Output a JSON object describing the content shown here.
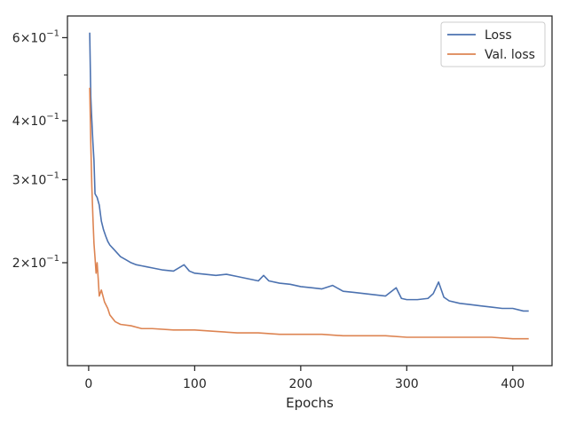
{
  "chart_data": {
    "type": "line",
    "title": "",
    "xlabel": "Epochs",
    "ylabel": "",
    "x_ticks": [
      0,
      100,
      200,
      300,
      400
    ],
    "y_scale": "log",
    "y_ticks": [
      {
        "value": 0.6,
        "mantissa": "6",
        "base": "×10",
        "exp": "−1"
      },
      {
        "value": 0.4,
        "mantissa": "4",
        "base": "×10",
        "exp": "−1"
      },
      {
        "value": 0.3,
        "mantissa": "3",
        "base": "×10",
        "exp": "−1"
      },
      {
        "value": 0.2,
        "mantissa": "2",
        "base": "×10",
        "exp": "−1"
      }
    ],
    "y_minor_ticks": [
      0.5
    ],
    "xlim": [
      -20,
      437
    ],
    "ylim": [
      0.121,
      0.667
    ],
    "grid": false,
    "legend_position": "top-right",
    "series": [
      {
        "name": "Loss",
        "color": "#4c72b0",
        "points": [
          [
            1,
            0.615
          ],
          [
            2,
            0.45
          ],
          [
            3,
            0.4
          ],
          [
            4,
            0.36
          ],
          [
            5,
            0.33
          ],
          [
            6,
            0.28
          ],
          [
            8,
            0.275
          ],
          [
            10,
            0.265
          ],
          [
            12,
            0.245
          ],
          [
            14,
            0.235
          ],
          [
            16,
            0.228
          ],
          [
            18,
            0.222
          ],
          [
            20,
            0.218
          ],
          [
            25,
            0.212
          ],
          [
            30,
            0.206
          ],
          [
            35,
            0.203
          ],
          [
            40,
            0.2
          ],
          [
            45,
            0.198
          ],
          [
            50,
            0.197
          ],
          [
            55,
            0.196
          ],
          [
            60,
            0.195
          ],
          [
            70,
            0.193
          ],
          [
            80,
            0.192
          ],
          [
            90,
            0.198
          ],
          [
            95,
            0.192
          ],
          [
            100,
            0.19
          ],
          [
            110,
            0.189
          ],
          [
            120,
            0.188
          ],
          [
            130,
            0.189
          ],
          [
            140,
            0.187
          ],
          [
            150,
            0.185
          ],
          [
            160,
            0.183
          ],
          [
            165,
            0.188
          ],
          [
            170,
            0.183
          ],
          [
            180,
            0.181
          ],
          [
            190,
            0.18
          ],
          [
            200,
            0.178
          ],
          [
            210,
            0.177
          ],
          [
            220,
            0.176
          ],
          [
            230,
            0.179
          ],
          [
            240,
            0.174
          ],
          [
            250,
            0.173
          ],
          [
            260,
            0.172
          ],
          [
            270,
            0.171
          ],
          [
            280,
            0.17
          ],
          [
            290,
            0.177
          ],
          [
            295,
            0.168
          ],
          [
            300,
            0.167
          ],
          [
            310,
            0.167
          ],
          [
            320,
            0.168
          ],
          [
            325,
            0.172
          ],
          [
            330,
            0.182
          ],
          [
            335,
            0.169
          ],
          [
            340,
            0.166
          ],
          [
            350,
            0.164
          ],
          [
            360,
            0.163
          ],
          [
            370,
            0.162
          ],
          [
            380,
            0.161
          ],
          [
            390,
            0.16
          ],
          [
            400,
            0.16
          ],
          [
            410,
            0.158
          ],
          [
            415,
            0.158
          ]
        ]
      },
      {
        "name": "Val. loss",
        "color": "#dd8452",
        "points": [
          [
            1,
            0.47
          ],
          [
            2,
            0.36
          ],
          [
            3,
            0.29
          ],
          [
            4,
            0.25
          ],
          [
            5,
            0.22
          ],
          [
            6,
            0.205
          ],
          [
            7,
            0.19
          ],
          [
            8,
            0.2
          ],
          [
            9,
            0.185
          ],
          [
            10,
            0.17
          ],
          [
            12,
            0.175
          ],
          [
            15,
            0.165
          ],
          [
            18,
            0.16
          ],
          [
            20,
            0.155
          ],
          [
            25,
            0.15
          ],
          [
            30,
            0.148
          ],
          [
            40,
            0.147
          ],
          [
            50,
            0.145
          ],
          [
            60,
            0.145
          ],
          [
            80,
            0.144
          ],
          [
            100,
            0.144
          ],
          [
            120,
            0.143
          ],
          [
            140,
            0.142
          ],
          [
            160,
            0.142
          ],
          [
            180,
            0.141
          ],
          [
            200,
            0.141
          ],
          [
            220,
            0.141
          ],
          [
            240,
            0.14
          ],
          [
            260,
            0.14
          ],
          [
            280,
            0.14
          ],
          [
            300,
            0.139
          ],
          [
            320,
            0.139
          ],
          [
            340,
            0.139
          ],
          [
            360,
            0.139
          ],
          [
            380,
            0.139
          ],
          [
            400,
            0.138
          ],
          [
            415,
            0.138
          ]
        ]
      }
    ]
  }
}
